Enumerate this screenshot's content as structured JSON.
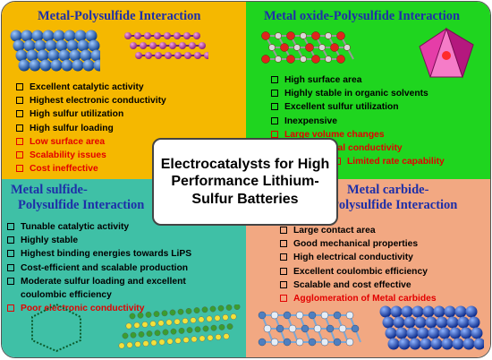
{
  "center_title": "Electrocatalysts for High Performance Lithium-Sulfur Batteries",
  "quadrants": {
    "metal_polysulfide": {
      "title": "Metal-Polysulfide Interaction",
      "items": [
        {
          "text": "Excellent catalytic activity",
          "negative": false
        },
        {
          "text": "Highest electronic conductivity",
          "negative": false
        },
        {
          "text": "High sulfur utilization",
          "negative": false
        },
        {
          "text": "High sulfur loading",
          "negative": false
        },
        {
          "text": "Low surface area",
          "negative": true
        },
        {
          "text": "Scalability issues",
          "negative": true
        },
        {
          "text": "Cost ineffective",
          "negative": true
        }
      ]
    },
    "metal_oxide_polysulfide": {
      "title": "Metal oxide-Polysulfide Interaction",
      "items": [
        {
          "text": "High surface area",
          "negative": false
        },
        {
          "text": "Highly stable in organic solvents",
          "negative": false
        },
        {
          "text": "Excellent sulfur utilization",
          "negative": false
        },
        {
          "text": "Inexpensive",
          "negative": false
        },
        {
          "text": "Large volume changes",
          "negative": true
        },
        {
          "text": "Low electrical conductivity",
          "negative": true
        },
        {
          "text": "Limited rate capability",
          "negative": true
        }
      ]
    },
    "metal_sulfide_polysulfide": {
      "title_line1": "Metal sulfide-",
      "title_line2": "Polysulfide Interaction",
      "items": [
        {
          "text": "Tunable catalytic activity",
          "negative": false
        },
        {
          "text": "Highly stable",
          "negative": false
        },
        {
          "text": "Highest binding energies towards LiPS",
          "negative": false
        },
        {
          "text": "Cost-efficient and scalable production",
          "negative": false
        },
        {
          "text": "Moderate sulfur loading and excellent",
          "negative": false
        },
        {
          "text": "coulombic efficiency",
          "negative": false,
          "continuation": true
        },
        {
          "text": "Poor electronic conductivity",
          "negative": true
        }
      ]
    },
    "metal_carbide_polysulfide": {
      "title_line1": "Metal carbide-",
      "title_line2": "Polysulfide Interaction",
      "items": [
        {
          "text": "Large contact area",
          "negative": false
        },
        {
          "text": "Good mechanical properties",
          "negative": false
        },
        {
          "text": "High electrical conductivity",
          "negative": false
        },
        {
          "text": "Excellent coulombic efficiency",
          "negative": false
        },
        {
          "text": "Scalable and cost effective",
          "negative": false
        },
        {
          "text": "Agglomeration of Metal carbides",
          "negative": true
        }
      ]
    }
  },
  "colors": {
    "metal_panel": "#f5b800",
    "metal_oxide_panel": "#1fd51f",
    "metal_sulfide_panel": "#3fc0a6",
    "metal_carbide_panel": "#f2a882",
    "title_text": "#1e2fa8",
    "negative_text": "#e30000"
  },
  "illustrations": [
    "metal-sphere-lattice",
    "metal-atom-chain-lattice",
    "metal-oxide-ball-stick-lattice",
    "metal-oxide-octahedra-polyhedron",
    "sulfide-hexagonal-outline",
    "sulfide-layered-lattice",
    "carbide-ball-stick-lattice",
    "carbide-sphere-lattice"
  ]
}
